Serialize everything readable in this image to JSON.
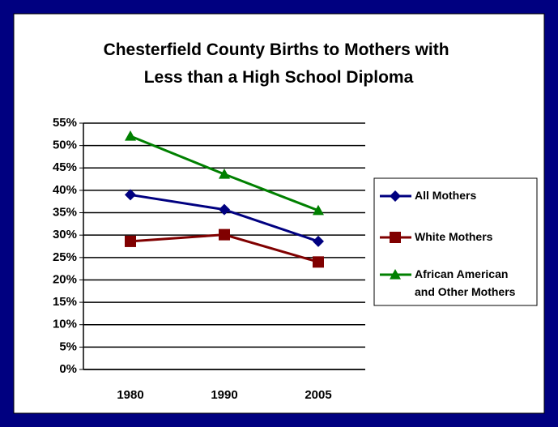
{
  "chart_data": {
    "type": "line",
    "title": "Chesterfield County Births to Mothers with Less than a High School Diploma",
    "categories": [
      "1980",
      "1990",
      "2005"
    ],
    "series": [
      {
        "name": "All Mothers",
        "color": "#000080",
        "marker": "diamond",
        "values": [
          39,
          35.7,
          28.6
        ]
      },
      {
        "name": "White Mothers",
        "color": "#800000",
        "marker": "square",
        "values": [
          28.6,
          30.1,
          24
        ]
      },
      {
        "name": "African American and Other Mothers",
        "color": "#008000",
        "marker": "triangle",
        "values": [
          52.1,
          43.6,
          35.5
        ]
      }
    ],
    "ylim": [
      0,
      55
    ],
    "yticks": [
      {
        "value": 0,
        "label": "0%"
      },
      {
        "value": 5,
        "label": "5%"
      },
      {
        "value": 10,
        "label": "10%"
      },
      {
        "value": 15,
        "label": "15%"
      },
      {
        "value": 20,
        "label": "20%"
      },
      {
        "value": 25,
        "label": "25%"
      },
      {
        "value": 30,
        "label": "30%"
      },
      {
        "value": 35,
        "label": "35%"
      },
      {
        "value": 40,
        "label": "40%"
      },
      {
        "value": 45,
        "label": "45%"
      },
      {
        "value": 50,
        "label": "50%"
      },
      {
        "value": 55,
        "label": "55%"
      }
    ],
    "grid": true,
    "legend": "right"
  }
}
